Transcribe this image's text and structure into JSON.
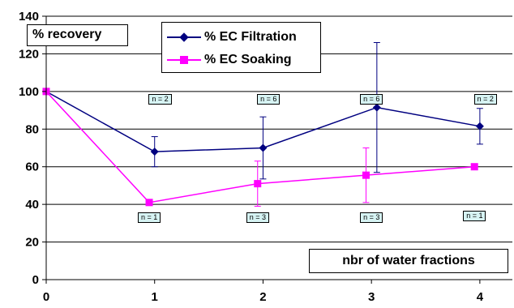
{
  "chart_data": {
    "type": "line",
    "title": "",
    "xlabel": "nbr of water fractions",
    "ylabel": "% recovery",
    "x_ticks": [
      "0",
      "1",
      "2",
      "3",
      "4"
    ],
    "y_ticks": [
      "0",
      "20",
      "40",
      "60",
      "80",
      "100",
      "120",
      "140"
    ],
    "xlim": [
      0,
      4.3
    ],
    "ylim": [
      0,
      140
    ],
    "grid": "horizontal",
    "legend_position": "top-center",
    "series": [
      {
        "name": "% EC Filtration",
        "color": "#000080",
        "marker": "diamond",
        "x": [
          0,
          1,
          2,
          3.05,
          4
        ],
        "y": [
          100,
          68,
          70,
          91.5,
          81.5
        ],
        "error": [
          null,
          8,
          16.5,
          34.5,
          9.5
        ]
      },
      {
        "name": "% EC Soaking",
        "color": "#ff00ff",
        "marker": "square",
        "x": [
          0,
          0.95,
          1.95,
          2.95,
          3.95
        ],
        "y": [
          100,
          41,
          51,
          55.5,
          60
        ],
        "error": [
          null,
          null,
          12,
          14.5,
          null
        ]
      }
    ],
    "annotations": [
      {
        "text": "n = 2",
        "x": 1.05,
        "y": 96
      },
      {
        "text": "n = 6",
        "x": 2.05,
        "y": 96
      },
      {
        "text": "n = 6",
        "x": 3.0,
        "y": 96
      },
      {
        "text": "n = 2",
        "x": 4.05,
        "y": 96
      },
      {
        "text": "n = 1",
        "x": 0.95,
        "y": 33
      },
      {
        "text": "n = 3",
        "x": 1.95,
        "y": 33
      },
      {
        "text": "n = 3",
        "x": 3.0,
        "y": 33
      },
      {
        "text": "n = 1",
        "x": 3.95,
        "y": 34
      }
    ]
  }
}
